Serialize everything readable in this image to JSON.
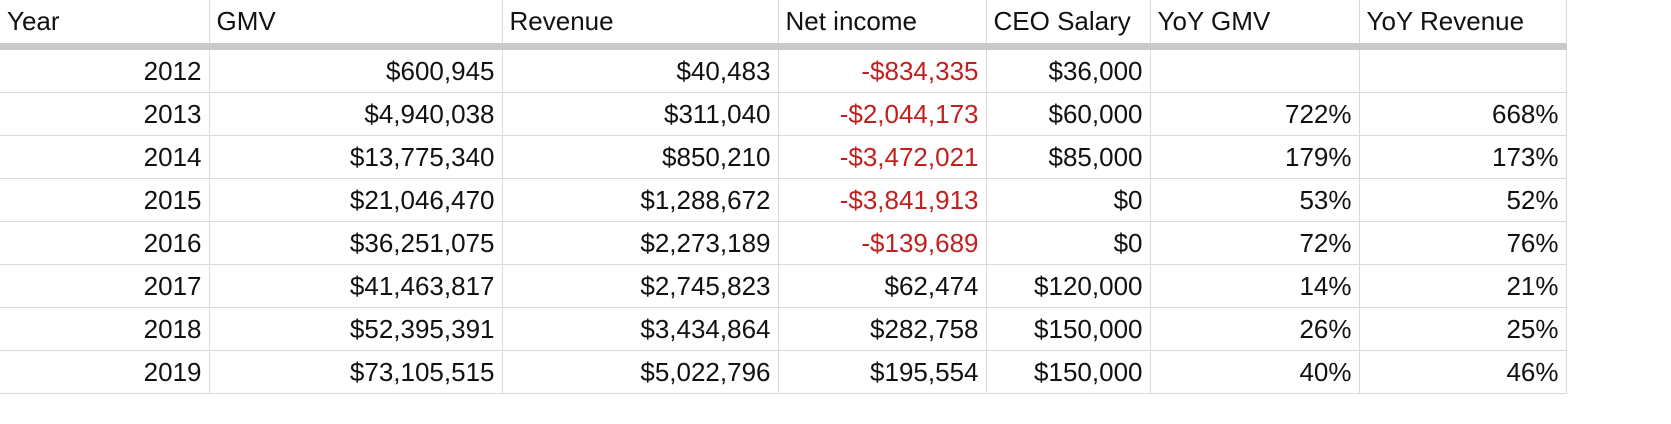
{
  "colors": {
    "negative": "#c0201e",
    "text": "#111111",
    "gridline": "#dadada",
    "header_rule": "#c9c9c9"
  },
  "columns": [
    "Year",
    "GMV",
    "Revenue",
    "Net income",
    "CEO Salary",
    "YoY GMV",
    "YoY Revenue"
  ],
  "rows": [
    {
      "year": "2012",
      "gmv": "$600,945",
      "revenue": "$40,483",
      "net_income": "-$834,335",
      "ceo_salary": "$36,000",
      "yoy_gmv": "",
      "yoy_revenue": ""
    },
    {
      "year": "2013",
      "gmv": "$4,940,038",
      "revenue": "$311,040",
      "net_income": "-$2,044,173",
      "ceo_salary": "$60,000",
      "yoy_gmv": "722%",
      "yoy_revenue": "668%"
    },
    {
      "year": "2014",
      "gmv": "$13,775,340",
      "revenue": "$850,210",
      "net_income": "-$3,472,021",
      "ceo_salary": "$85,000",
      "yoy_gmv": "179%",
      "yoy_revenue": "173%"
    },
    {
      "year": "2015",
      "gmv": "$21,046,470",
      "revenue": "$1,288,672",
      "net_income": "-$3,841,913",
      "ceo_salary": "$0",
      "yoy_gmv": "53%",
      "yoy_revenue": "52%"
    },
    {
      "year": "2016",
      "gmv": "$36,251,075",
      "revenue": "$2,273,189",
      "net_income": "-$139,689",
      "ceo_salary": "$0",
      "yoy_gmv": "72%",
      "yoy_revenue": "76%"
    },
    {
      "year": "2017",
      "gmv": "$41,463,817",
      "revenue": "$2,745,823",
      "net_income": "$62,474",
      "ceo_salary": "$120,000",
      "yoy_gmv": "14%",
      "yoy_revenue": "21%"
    },
    {
      "year": "2018",
      "gmv": "$52,395,391",
      "revenue": "$3,434,864",
      "net_income": "$282,758",
      "ceo_salary": "$150,000",
      "yoy_gmv": "26%",
      "yoy_revenue": "25%"
    },
    {
      "year": "2019",
      "gmv": "$73,105,515",
      "revenue": "$5,022,796",
      "net_income": "$195,554",
      "ceo_salary": "$150,000",
      "yoy_gmv": "40%",
      "yoy_revenue": "46%"
    }
  ]
}
